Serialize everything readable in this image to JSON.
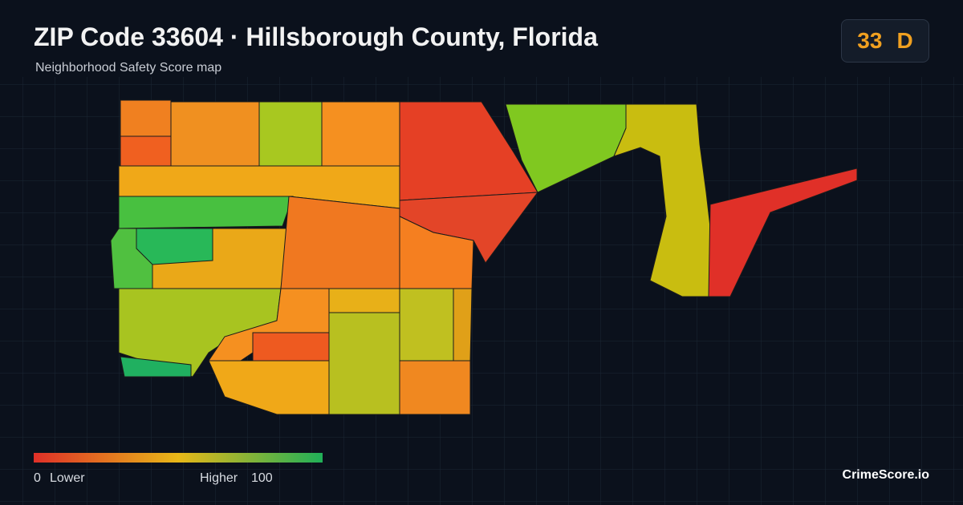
{
  "header": {
    "title": "ZIP Code 33604 · Hillsborough County, Florida",
    "subtitle": "Neighborhood Safety Score map"
  },
  "score": {
    "value": 33,
    "grade": "D"
  },
  "legend": {
    "min": 0,
    "min_label": "Lower",
    "max_label": "Higher",
    "max": 100
  },
  "brand": "CrimeScore.io"
}
